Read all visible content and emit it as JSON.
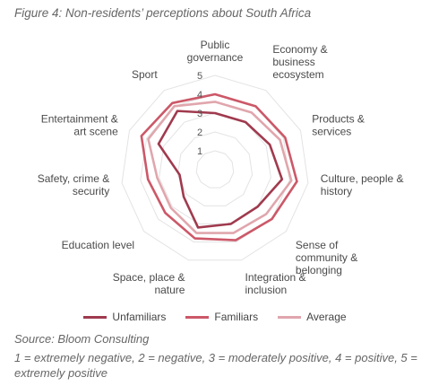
{
  "figure_title": "Figure 4: Non-residents’ perceptions about South Africa",
  "source": "Source: Bloom Consulting",
  "scale_note": "1 = extremely negative, 2 = negative, 3 = moderately positive, 4 = positive, 5 = extremely positive",
  "chart_data": {
    "type": "radar",
    "axes": [
      [
        "Public",
        "governance"
      ],
      [
        "Economy &",
        "business",
        "ecosystem"
      ],
      [
        "Products &",
        "services"
      ],
      [
        "Culture, people &",
        "history"
      ],
      [
        "Sense of",
        "community &",
        "belonging"
      ],
      [
        "Integration &",
        "inclusion"
      ],
      [
        "Space, place &",
        "nature"
      ],
      [
        "Education level"
      ],
      [
        "Safety, crime &",
        "security"
      ],
      [
        "Entertainment &",
        "art scene"
      ],
      [
        "Sport"
      ]
    ],
    "rlim": [
      0,
      5
    ],
    "ticks": [
      1,
      2,
      3,
      4,
      5
    ],
    "grid": true,
    "legend_position": "bottom",
    "series": [
      {
        "name": "Unfamiliars",
        "color": "#a03a4e",
        "values": [
          3.0,
          3.0,
          3.2,
          3.6,
          3.0,
          3.0,
          3.2,
          2.2,
          1.9,
          3.3,
          3.7
        ]
      },
      {
        "name": "Familiars",
        "color": "#cc5868",
        "values": [
          4.0,
          4.0,
          4.1,
          4.4,
          4.0,
          3.9,
          3.8,
          3.5,
          3.6,
          4.3,
          4.2
        ]
      },
      {
        "name": "Average",
        "color": "#e0a6ad",
        "values": [
          3.6,
          3.6,
          3.8,
          4.1,
          3.6,
          3.5,
          3.5,
          3.1,
          3.1,
          3.9,
          4.0
        ]
      }
    ]
  }
}
